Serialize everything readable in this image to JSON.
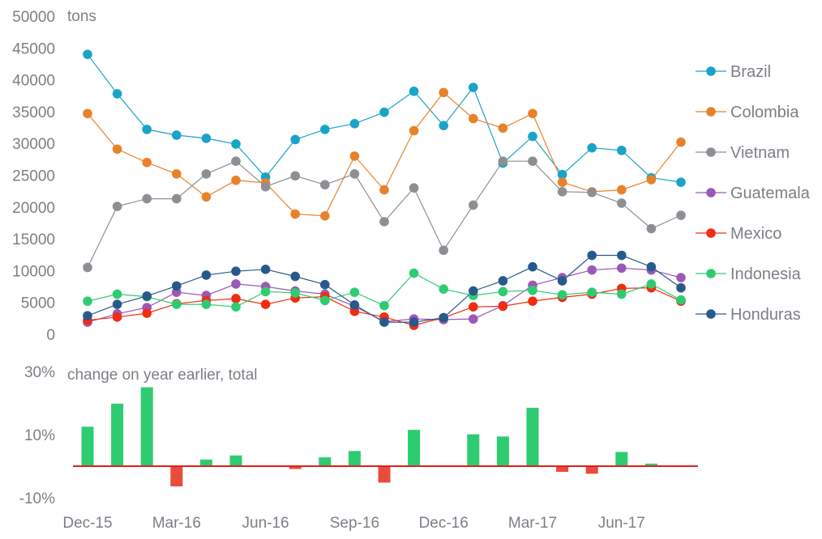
{
  "chart_data": [
    {
      "type": "line",
      "title": "",
      "ylabel": "tons",
      "ylim": [
        0,
        50000
      ],
      "yticks": [
        0,
        5000,
        10000,
        15000,
        20000,
        25000,
        30000,
        35000,
        40000,
        45000,
        50000
      ],
      "x": [
        "Dec-15",
        "Jan-16",
        "Feb-16",
        "Mar-16",
        "Apr-16",
        "May-16",
        "Jun-16",
        "Jul-16",
        "Aug-16",
        "Sep-16",
        "Oct-16",
        "Nov-16",
        "Dec-16",
        "Jan-17",
        "Feb-17",
        "Mar-17",
        "Apr-17",
        "May-17",
        "Jun-17",
        "Jul-17",
        "Aug-17"
      ],
      "series": [
        {
          "name": "Brazil",
          "color": "#1aa3c9",
          "values": [
            44000,
            37800,
            32200,
            31300,
            30800,
            29900,
            24700,
            30600,
            32200,
            33100,
            34900,
            38200,
            32800,
            38800,
            26900,
            31100,
            25100,
            29300,
            28900,
            24600,
            23900
          ]
        },
        {
          "name": "Colombia",
          "color": "#e8822a",
          "values": [
            34700,
            29100,
            27000,
            25200,
            21600,
            24200,
            23800,
            18900,
            18600,
            28000,
            22700,
            32000,
            38000,
            33900,
            32400,
            34700,
            23900,
            22400,
            22700,
            24300,
            30200
          ]
        },
        {
          "name": "Vietnam",
          "color": "#8c8f93",
          "values": [
            10500,
            20100,
            21300,
            21300,
            25200,
            27200,
            23200,
            24900,
            23500,
            25200,
            17700,
            23000,
            13200,
            20300,
            27200,
            27200,
            22400,
            22300,
            20600,
            16600,
            18700
          ]
        },
        {
          "name": "Guatemala",
          "color": "#9b59b6",
          "values": [
            1900,
            3200,
            4200,
            6600,
            6100,
            7900,
            7500,
            6800,
            6300,
            4400,
            2000,
            2400,
            2300,
            2400,
            4500,
            7700,
            8900,
            10100,
            10400,
            10100,
            8900
          ]
        },
        {
          "name": "Mexico",
          "color": "#f02d12",
          "values": [
            2200,
            2700,
            3300,
            4800,
            5300,
            5600,
            4700,
            5700,
            5900,
            3600,
            2700,
            1400,
            2600,
            4300,
            4400,
            5200,
            5800,
            6300,
            7200,
            7300,
            5200
          ]
        },
        {
          "name": "Indonesia",
          "color": "#2ecc71",
          "values": [
            5200,
            6300,
            5900,
            4700,
            4700,
            4300,
            6700,
            6500,
            5300,
            6600,
            4500,
            9600,
            7100,
            6100,
            6700,
            6900,
            6200,
            6600,
            6300,
            7900,
            5400
          ]
        },
        {
          "name": "Honduras",
          "color": "#275a8a",
          "values": [
            2900,
            4700,
            6000,
            7600,
            9300,
            9900,
            10200,
            9100,
            7800,
            4600,
            1900,
            1900,
            2600,
            6800,
            8400,
            10600,
            8400,
            12400,
            12400,
            10600,
            7300
          ]
        }
      ]
    },
    {
      "type": "bar",
      "title": "change on year earlier, total",
      "ylim": [
        -10,
        30
      ],
      "ytick_labels": [
        "30%",
        "10%",
        "-10%"
      ],
      "yticks": [
        30,
        10,
        -10
      ],
      "xtick_labels": [
        "Dec-15",
        "Mar-16",
        "Jun-16",
        "Sep-16",
        "Dec-16",
        "Mar-17",
        "Jun-17"
      ],
      "positive_color": "#2ecc71",
      "negative_color": "#e74c3c",
      "zero_line_color": "#e02020",
      "values": [
        12.5,
        19.8,
        25.0,
        -6.4,
        2.1,
        3.4,
        0,
        -0.9,
        2.8,
        4.8,
        -5.2,
        11.5,
        0,
        10.1,
        9.4,
        18.5,
        -1.8,
        -2.4,
        4.5,
        0.8,
        0
      ]
    }
  ]
}
